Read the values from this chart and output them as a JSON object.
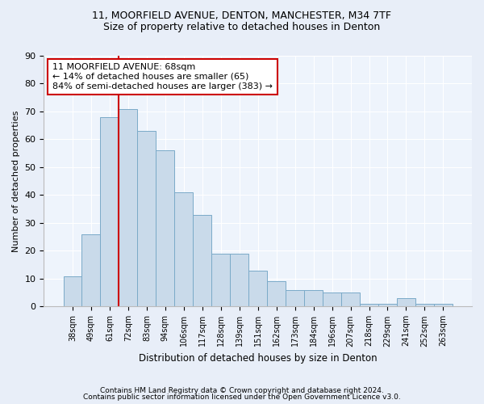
{
  "title1": "11, MOORFIELD AVENUE, DENTON, MANCHESTER, M34 7TF",
  "title2": "Size of property relative to detached houses in Denton",
  "xlabel": "Distribution of detached houses by size in Denton",
  "ylabel": "Number of detached properties",
  "categories": [
    "38sqm",
    "49sqm",
    "61sqm",
    "72sqm",
    "83sqm",
    "94sqm",
    "106sqm",
    "117sqm",
    "128sqm",
    "139sqm",
    "151sqm",
    "162sqm",
    "173sqm",
    "184sqm",
    "196sqm",
    "207sqm",
    "218sqm",
    "229sqm",
    "241sqm",
    "252sqm",
    "263sqm"
  ],
  "values": [
    11,
    26,
    68,
    71,
    63,
    56,
    41,
    33,
    19,
    19,
    13,
    9,
    6,
    6,
    5,
    5,
    1,
    1,
    3,
    1,
    1
  ],
  "bar_color": "#c9daea",
  "bar_edge_color": "#7aaac8",
  "vline_index": 2.5,
  "annotation_line1": "11 MOORFIELD AVENUE: 68sqm",
  "annotation_line2": "← 14% of detached houses are smaller (65)",
  "annotation_line3": "84% of semi-detached houses are larger (383) →",
  "vline_color": "#cc0000",
  "box_edge_color": "#cc0000",
  "ylim": [
    0,
    90
  ],
  "yticks": [
    0,
    10,
    20,
    30,
    40,
    50,
    60,
    70,
    80,
    90
  ],
  "footer1": "Contains HM Land Registry data © Crown copyright and database right 2024.",
  "footer2": "Contains public sector information licensed under the Open Government Licence v3.0.",
  "bg_color": "#e8eef8",
  "plot_bg_color": "#eef4fc",
  "grid_color": "#ffffff",
  "title1_fontsize": 9,
  "title2_fontsize": 9
}
